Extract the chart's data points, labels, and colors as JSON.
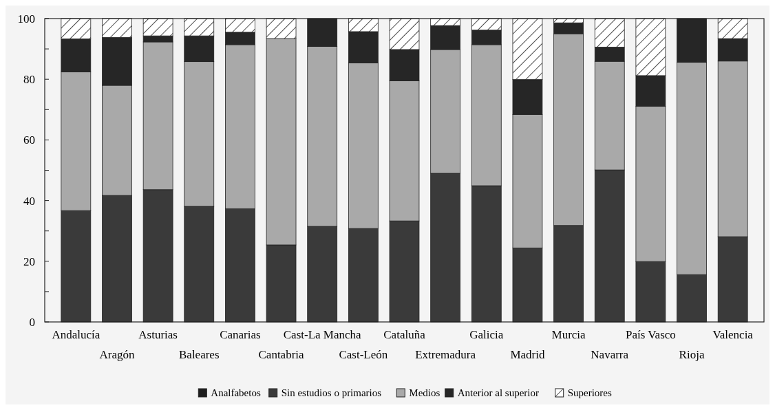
{
  "chart_data": {
    "type": "bar",
    "stacked": true,
    "categories": [
      "Andalucía",
      "Aragón",
      "Asturias",
      "Baleares",
      "Canarias",
      "Cantabria",
      "Cast-La Mancha",
      "Cast-León",
      "Cataluña",
      "Extremadura",
      "Galicia",
      "Madrid",
      "Murcia",
      "Navarra",
      "País Vasco",
      "Rioja",
      "Valencia"
    ],
    "series": [
      {
        "name": "Analfabetos",
        "color": "#1e1e1e",
        "values": [
          0,
          0,
          0,
          0,
          0,
          0,
          0,
          0,
          0,
          0,
          0,
          0,
          0,
          0,
          0,
          0,
          0
        ]
      },
      {
        "name": "Sin estudios o primarios",
        "color": "#3a3a3a",
        "values": [
          36.7,
          41.7,
          43.6,
          38.1,
          37.3,
          25.4,
          31.5,
          30.8,
          33.3,
          49.0,
          44.9,
          24.4,
          31.8,
          50.1,
          19.9,
          15.6,
          28.1
        ]
      },
      {
        "name": "Medios",
        "color": "#a9a9a9",
        "values": [
          45.7,
          36.3,
          48.7,
          47.7,
          54.1,
          68.0,
          59.3,
          54.6,
          46.2,
          40.8,
          46.5,
          44.0,
          63.2,
          35.8,
          51.2,
          70.0,
          57.9
        ]
      },
      {
        "name": "Anterior al superior",
        "color": "#262626",
        "values": [
          10.9,
          15.8,
          2.0,
          8.5,
          4.1,
          0,
          9.2,
          10.3,
          10.3,
          7.9,
          4.8,
          11.5,
          3.6,
          4.7,
          10.1,
          14.4,
          7.4
        ]
      },
      {
        "name": "Superiores",
        "color": "#ffffff",
        "values": [
          6.7,
          6.2,
          5.7,
          5.7,
          4.5,
          6.6,
          0,
          4.3,
          10.2,
          2.3,
          3.8,
          20.1,
          1.4,
          9.4,
          18.8,
          0,
          6.6
        ]
      }
    ],
    "ylim": [
      0,
      100
    ],
    "yticks": [
      0,
      {
        "value": 10,
        "label": null
      },
      20,
      {
        "value": 30,
        "label": null
      },
      40,
      {
        "value": 50,
        "label": null
      },
      60,
      {
        "value": 70,
        "label": null
      },
      80,
      {
        "value": 90,
        "label": null
      },
      100
    ],
    "legend": "bottom",
    "grid": false
  }
}
